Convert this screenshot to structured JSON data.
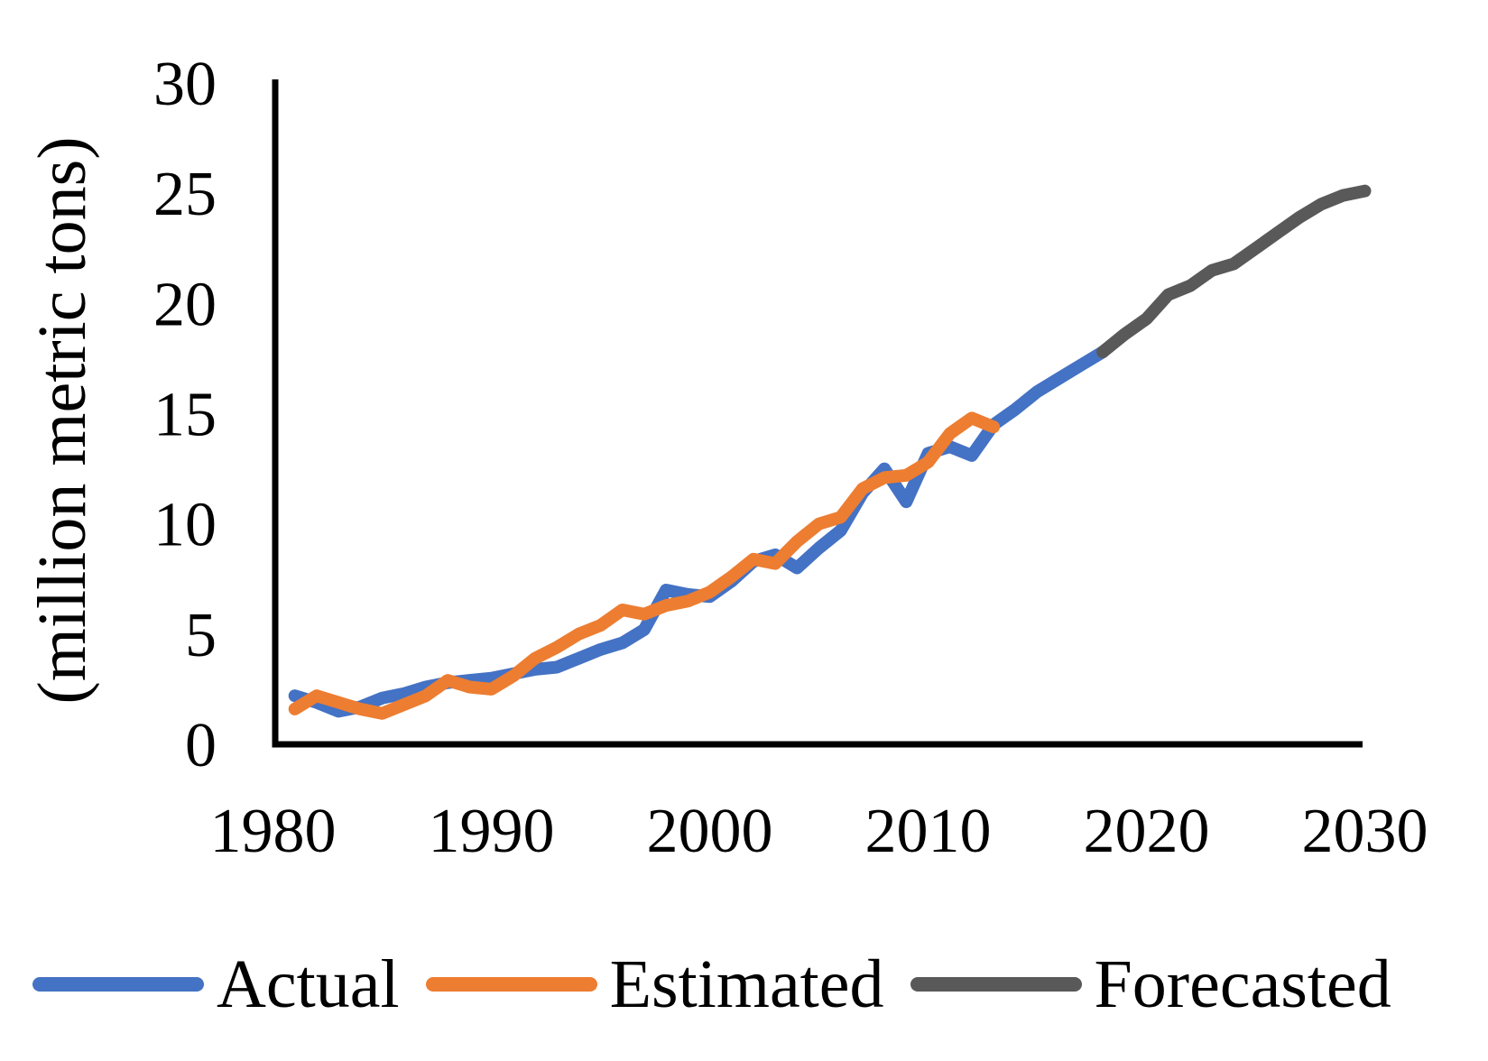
{
  "chart_data": {
    "type": "line",
    "title": "",
    "xlabel": "",
    "ylabel": "(million metric tons)",
    "xlim": [
      1980,
      2030
    ],
    "ylim": [
      0,
      30
    ],
    "xticks": [
      1980,
      1990,
      2000,
      2010,
      2020,
      2030
    ],
    "yticks": [
      0,
      5,
      10,
      15,
      20,
      25,
      30
    ],
    "grid": false,
    "legend_position": "bottom",
    "axis_color": "#000000",
    "series": [
      {
        "name": "Actual",
        "color": "#4472C4",
        "start_year": 1981,
        "values": [
          2.2,
          1.9,
          1.5,
          1.7,
          2.1,
          2.3,
          2.6,
          2.8,
          2.9,
          3.0,
          3.2,
          3.4,
          3.5,
          3.9,
          4.3,
          4.6,
          5.2,
          7.0,
          6.8,
          6.7,
          7.4,
          8.3,
          8.6,
          8.0,
          8.9,
          9.7,
          11.4,
          12.5,
          11.0,
          13.2,
          13.5,
          13.1,
          14.5,
          15.2,
          16.0,
          16.6,
          17.2,
          17.8
        ]
      },
      {
        "name": "Estimated",
        "color": "#ED7D31",
        "start_year": 1981,
        "values": [
          1.6,
          2.2,
          1.9,
          1.6,
          1.4,
          1.8,
          2.2,
          2.9,
          2.6,
          2.5,
          3.1,
          3.9,
          4.4,
          5.0,
          5.4,
          6.1,
          5.9,
          6.3,
          6.5,
          6.9,
          7.6,
          8.4,
          8.2,
          9.2,
          10.0,
          10.3,
          11.6,
          12.1,
          12.2,
          12.8,
          14.1,
          14.8,
          14.4
        ]
      },
      {
        "name": "Forecasted",
        "color": "#595959",
        "start_year": 2018,
        "values": [
          17.8,
          18.6,
          19.3,
          20.4,
          20.8,
          21.5,
          21.8,
          22.5,
          23.2,
          23.9,
          24.5,
          24.9,
          25.1
        ]
      }
    ]
  }
}
